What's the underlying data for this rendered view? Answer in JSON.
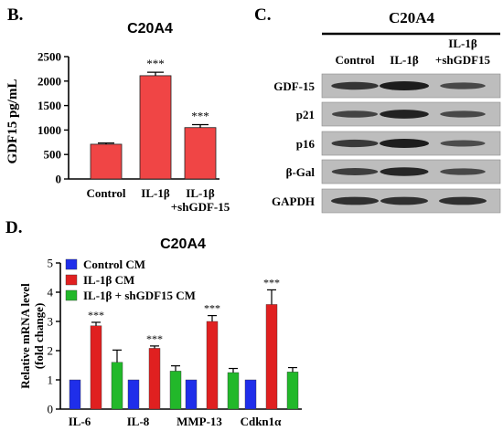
{
  "panelB": {
    "letter": "B.",
    "title": "C20A4",
    "ylabel": "GDF15 pg/mL",
    "bar_color": "#f04545"
  },
  "panelC": {
    "letter": "C.",
    "title": "C20A4",
    "lanes": [
      "Control",
      "IL-1β",
      "IL-1β",
      "+shGDF15"
    ],
    "proteins": [
      "GDF-15",
      "p21",
      "p16",
      "β-Gal",
      "GAPDH"
    ]
  },
  "panelD": {
    "letter": "D.",
    "title": "C20A4",
    "ylabel_line1": "Relative mRNA level",
    "ylabel_line2": "(fold change)"
  },
  "chart_data": [
    {
      "type": "bar",
      "title": "C20A4",
      "xlabel": "",
      "ylabel": "GDF15 pg/mL",
      "categories": [
        "Control",
        "IL-1β",
        "IL-1β\n+shGDF-15"
      ],
      "values": [
        710,
        2110,
        1050
      ],
      "errors": [
        25,
        70,
        60
      ],
      "significance": [
        "",
        "***",
        "***"
      ],
      "ylim": [
        0,
        2500
      ],
      "yticks": [
        0,
        500,
        1000,
        1500,
        2000,
        2500
      ],
      "color": "#f04545"
    },
    {
      "type": "bar",
      "title": "C20A4",
      "xlabel": "",
      "ylabel": "Relative mRNA level (fold change)",
      "categories": [
        "IL-6",
        "IL-8",
        "MMP-13",
        "Cdkn1α"
      ],
      "ylim": [
        0,
        5
      ],
      "yticks": [
        0,
        1,
        2,
        3,
        4,
        5
      ],
      "legend_position": "top-left",
      "series": [
        {
          "name": "Control CM",
          "color": "#1f2eea",
          "values": [
            1.0,
            1.0,
            1.0,
            1.0
          ],
          "errors": [
            0,
            0,
            0,
            0
          ],
          "significance": [
            "",
            "",
            "",
            ""
          ]
        },
        {
          "name": "IL-1β CM",
          "color": "#e02020",
          "values": [
            2.85,
            2.08,
            3.0,
            3.58
          ],
          "errors": [
            0.12,
            0.08,
            0.2,
            0.5
          ],
          "significance": [
            "***",
            "***",
            "***",
            "***"
          ]
        },
        {
          "name": "IL-1β + shGDF15 CM",
          "color": "#22b82a",
          "values": [
            1.6,
            1.3,
            1.25,
            1.27
          ],
          "errors": [
            0.42,
            0.18,
            0.14,
            0.15
          ],
          "significance": [
            "",
            "",
            "",
            ""
          ]
        }
      ]
    }
  ]
}
